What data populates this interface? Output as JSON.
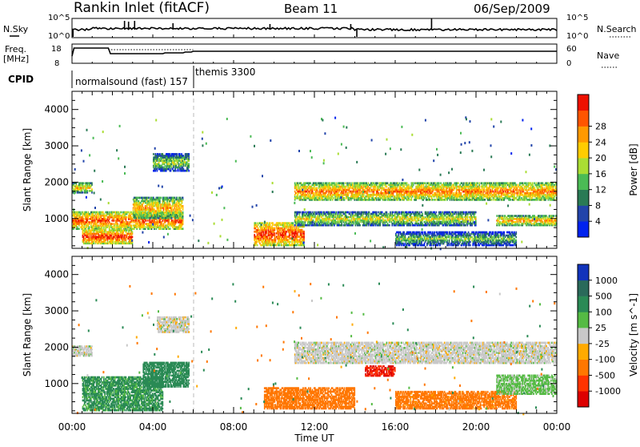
{
  "header": {
    "station": "Rankin Inlet (fitACF)",
    "beam": "Beam 11",
    "date": "06/Sep/2009"
  },
  "strip_labels": {
    "nsky": "N.Sky",
    "nsearch": "N.Search",
    "freq_line1": "Freq.",
    "freq_line2": "[MHz]",
    "nave": "Nave",
    "cpid": "CPID",
    "cpid_seg1": "normalsound (fast) 157",
    "cpid_seg2": "themis 3300"
  },
  "noise_axis": {
    "left_top": "10^5",
    "left_bottom": "10^0",
    "right_top": "10^5",
    "right_bottom": "10^0"
  },
  "freq_axis": {
    "left_top": "18",
    "left_bottom": "8",
    "right_top": "60",
    "right_bottom": "0"
  },
  "time_axis": {
    "label": "Time UT",
    "ticks": [
      "00:00",
      "04:00",
      "08:00",
      "12:00",
      "16:00",
      "20:00",
      "00:00"
    ]
  },
  "range_axis": {
    "label": "Slant Range [km]",
    "ticks": [
      "1000",
      "2000",
      "3000",
      "4000"
    ]
  },
  "power_scale": {
    "label": "Power [dB]",
    "ticks": [
      "4",
      "8",
      "12",
      "16",
      "20",
      "24",
      "28"
    ],
    "colors": [
      "#0022ee",
      "#2244aa",
      "#2a7a55",
      "#4bbb55",
      "#aadd33",
      "#ffcc00",
      "#ff9900",
      "#ff5500",
      "#ee1100"
    ]
  },
  "velocity_scale": {
    "label": "Velocity [m s^-1]",
    "ticks": [
      "1000",
      "500",
      "100",
      "25",
      "-25",
      "-100",
      "-500",
      "-1000"
    ],
    "colors": [
      "#1133bb",
      "#2a6a5a",
      "#2a8a55",
      "#55bb44",
      "#c8c8c8",
      "#ffaa00",
      "#ff7700",
      "#ff3300",
      "#dd0000"
    ]
  },
  "chart_data": [
    {
      "type": "heatmap",
      "name": "power",
      "xlabel": "Time UT",
      "ylabel": "Slant Range [km]",
      "xlim": [
        "00:00",
        "24:00"
      ],
      "ylim": [
        180,
        4500
      ],
      "colorbar": "Power [dB]",
      "colorbar_range": [
        0,
        30
      ],
      "regions": [
        {
          "t": [
            0,
            5.5
          ],
          "r": [
            700,
            1200
          ],
          "value": 26
        },
        {
          "t": [
            0.5,
            3.0
          ],
          "r": [
            300,
            700
          ],
          "value": 28
        },
        {
          "t": [
            3.0,
            5.5
          ],
          "r": [
            1000,
            1600
          ],
          "value": 22
        },
        {
          "t": [
            0,
            1.0
          ],
          "r": [
            1700,
            2000
          ],
          "value": 20
        },
        {
          "t": [
            4.0,
            5.8
          ],
          "r": [
            2300,
            2800
          ],
          "value": 16
        },
        {
          "t": [
            9.0,
            11.5
          ],
          "r": [
            250,
            900
          ],
          "value": 28
        },
        {
          "t": [
            11.0,
            24.0
          ],
          "r": [
            1500,
            2000
          ],
          "value": 24
        },
        {
          "t": [
            11.0,
            20.0
          ],
          "r": [
            800,
            1200
          ],
          "value": 18
        },
        {
          "t": [
            16.0,
            22.0
          ],
          "r": [
            250,
            650
          ],
          "value": 14
        },
        {
          "t": [
            21.0,
            24.0
          ],
          "r": [
            800,
            1100
          ],
          "value": 22
        }
      ]
    },
    {
      "type": "heatmap",
      "name": "velocity",
      "xlabel": "Time UT",
      "ylabel": "Slant Range [km]",
      "xlim": [
        "00:00",
        "24:00"
      ],
      "ylim": [
        180,
        4500
      ],
      "colorbar": "Velocity [m s^-1]",
      "colorbar_range": [
        -1000,
        1000
      ],
      "regions": [
        {
          "t": [
            0,
            1.0
          ],
          "r": [
            1750,
            2050
          ],
          "value": 0
        },
        {
          "t": [
            0.5,
            4.5
          ],
          "r": [
            250,
            1200
          ],
          "value": 150
        },
        {
          "t": [
            3.5,
            5.8
          ],
          "r": [
            900,
            1600
          ],
          "value": 300
        },
        {
          "t": [
            4.2,
            5.8
          ],
          "r": [
            2400,
            2850
          ],
          "value": 0
        },
        {
          "t": [
            11.0,
            24.0
          ],
          "r": [
            1550,
            2150
          ],
          "value": 0
        },
        {
          "t": [
            14.5,
            16.0
          ],
          "r": [
            1200,
            1500
          ],
          "value": -1000
        },
        {
          "t": [
            9.5,
            14.0
          ],
          "r": [
            300,
            900
          ],
          "value": -300
        },
        {
          "t": [
            16.0,
            22.0
          ],
          "r": [
            300,
            800
          ],
          "value": -200
        },
        {
          "t": [
            21.0,
            24.0
          ],
          "r": [
            700,
            1250
          ],
          "value": 50
        }
      ]
    }
  ]
}
